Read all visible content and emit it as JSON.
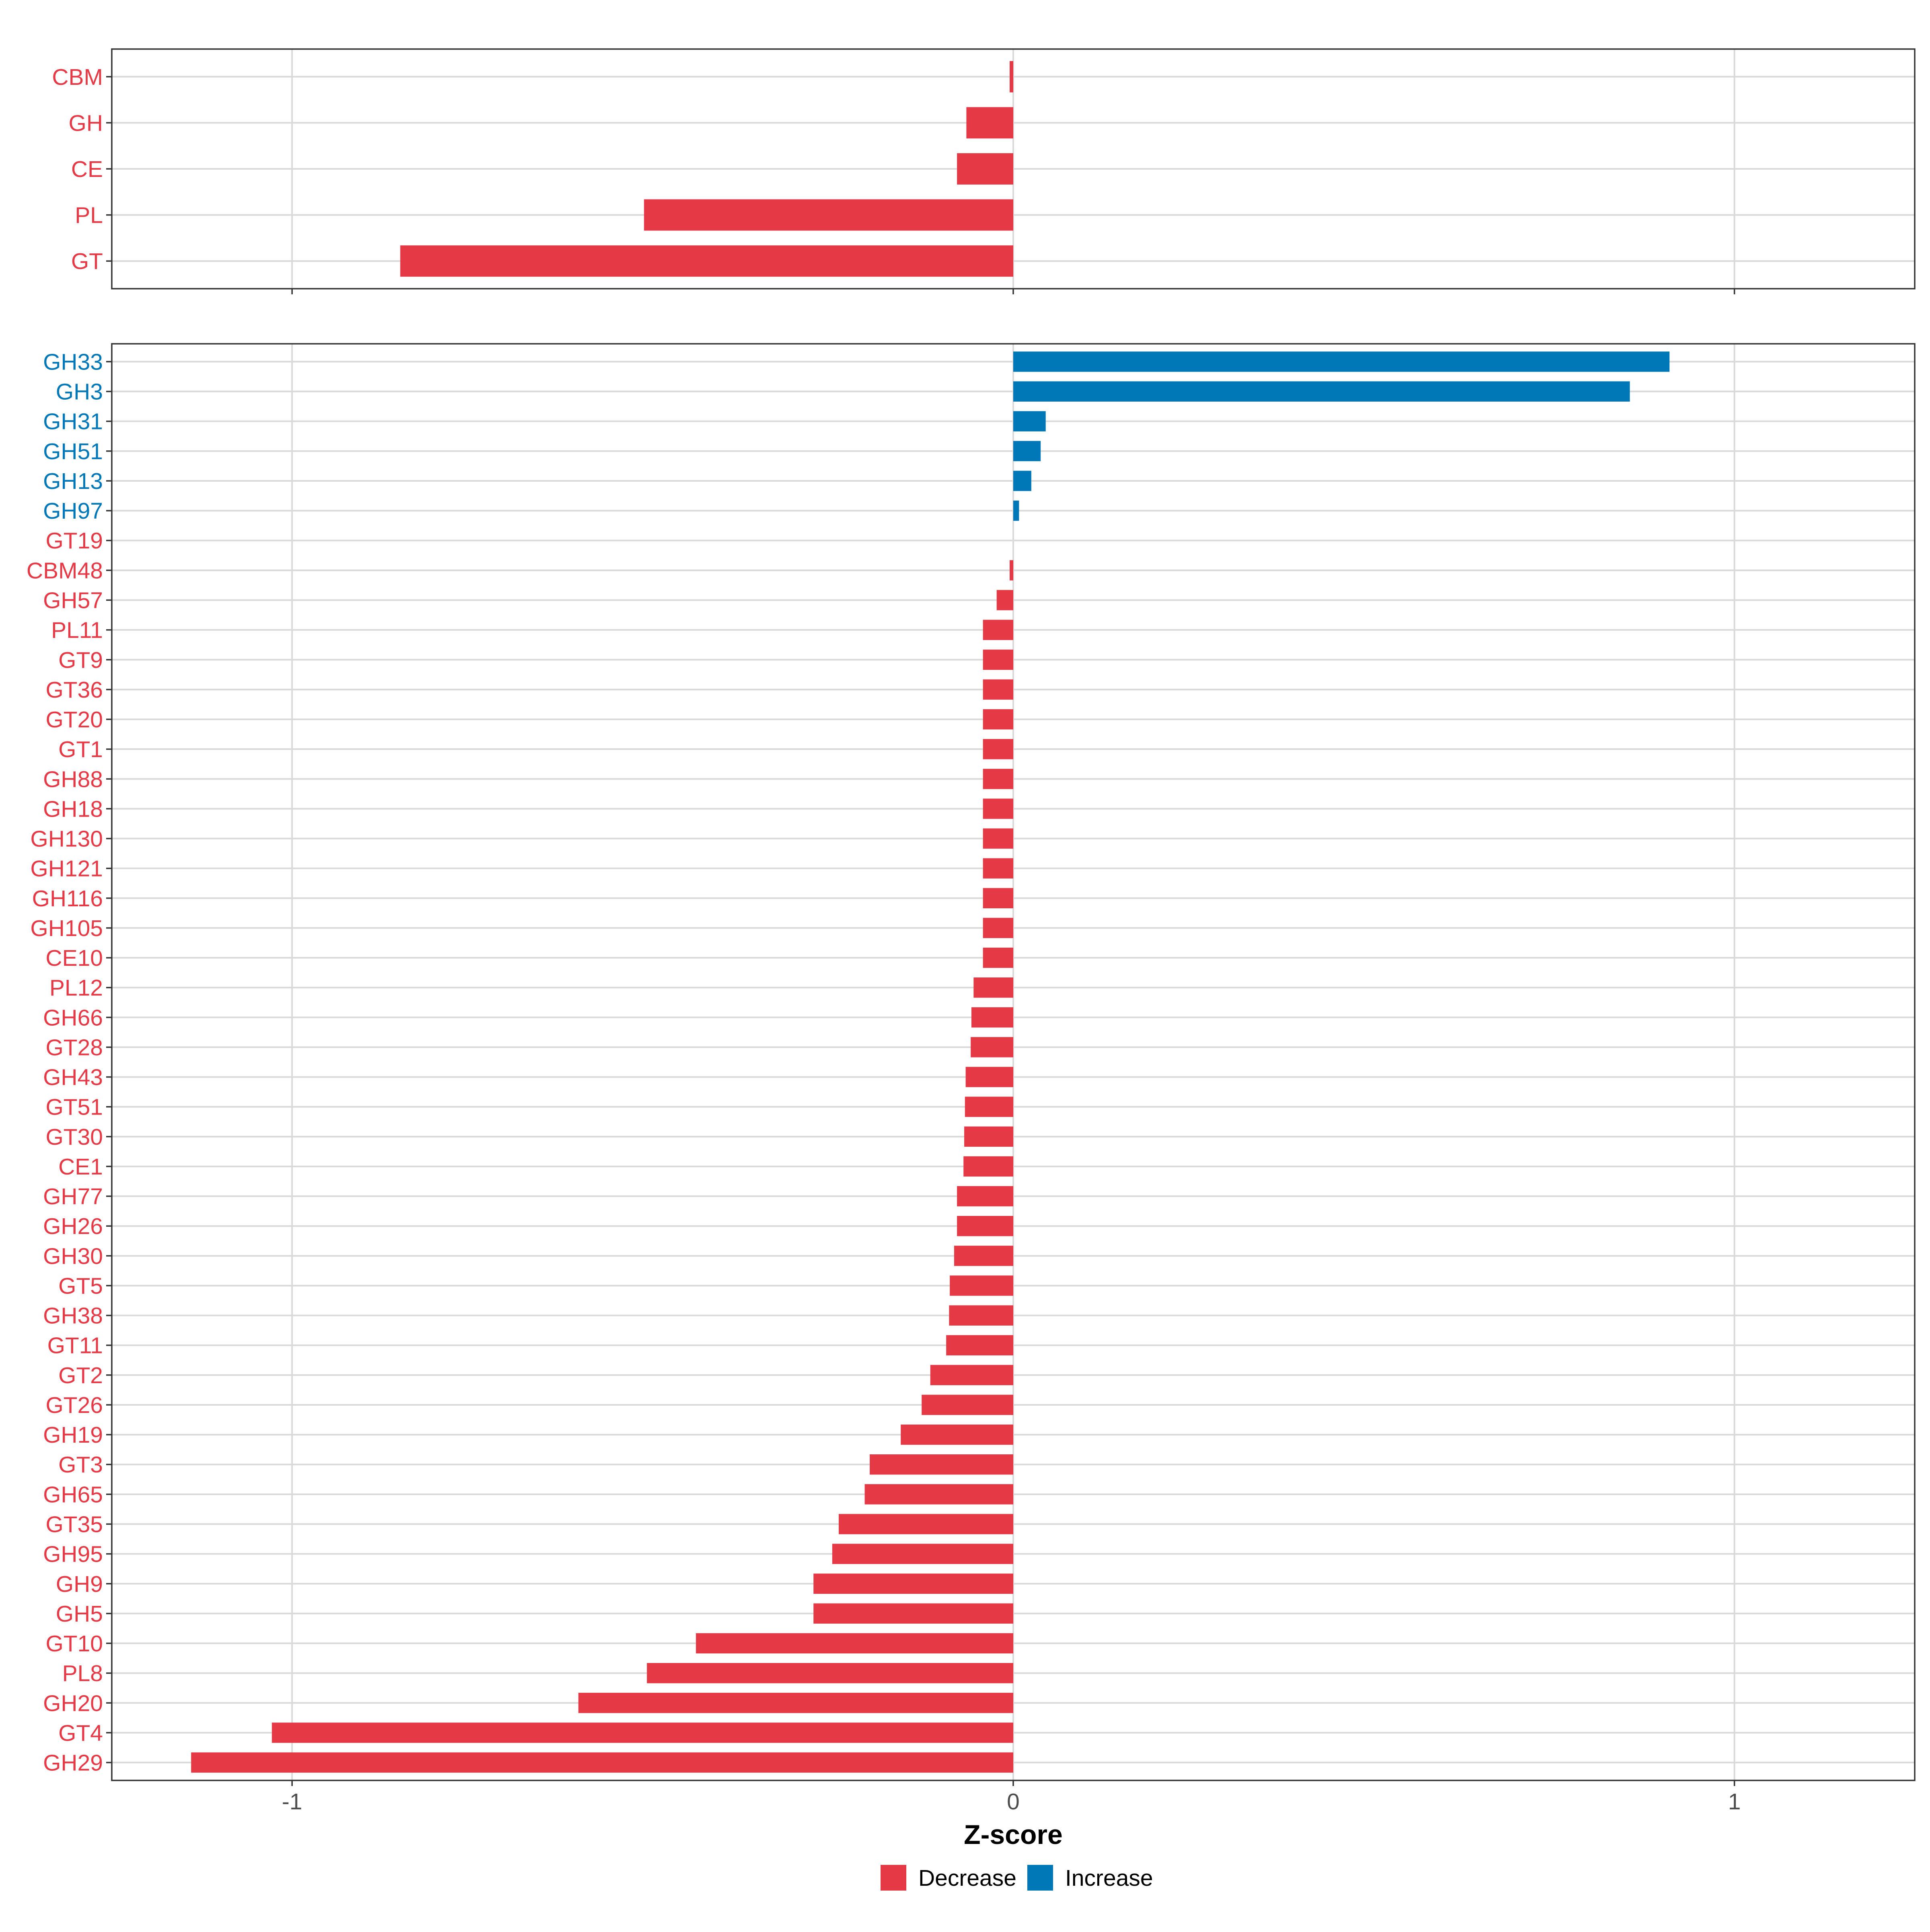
{
  "colors": {
    "decrease": "#E63946",
    "increase": "#0077B6",
    "grid": "#D9D9D9",
    "panel_border": "#333333",
    "axis_text": "#4D4D4D",
    "title_text": "#000000"
  },
  "chart_data": [
    {
      "type": "bar",
      "orientation": "horizontal",
      "panel": "top",
      "categories": [
        "CBM",
        "GH",
        "CE",
        "PL",
        "GT"
      ],
      "values": [
        -0.005,
        -0.065,
        -0.078,
        -0.512,
        -0.85
      ],
      "direction": [
        "Decrease",
        "Decrease",
        "Decrease",
        "Decrease",
        "Decrease"
      ],
      "xlim": [
        -1.25,
        1.25
      ],
      "xticks": [
        -1,
        0,
        1
      ],
      "show_x_tick_labels": false,
      "grid": true
    },
    {
      "type": "bar",
      "orientation": "horizontal",
      "panel": "bottom",
      "categories": [
        "GH33",
        "GH3",
        "GH31",
        "GH51",
        "GH13",
        "GH97",
        "GT19",
        "CBM48",
        "GH57",
        "PL11",
        "GT9",
        "GT36",
        "GT20",
        "GT1",
        "GH88",
        "GH18",
        "GH130",
        "GH121",
        "GH116",
        "GH105",
        "CE10",
        "PL12",
        "GH66",
        "GT28",
        "GH43",
        "GT51",
        "GT30",
        "CE1",
        "GH77",
        "GH26",
        "GH30",
        "GT5",
        "GH38",
        "GT11",
        "GT2",
        "GT26",
        "GH19",
        "GT3",
        "GH65",
        "GT35",
        "GH95",
        "GH9",
        "GH5",
        "GT10",
        "PL8",
        "GH20",
        "GT4",
        "GH29"
      ],
      "values": [
        0.91,
        0.855,
        0.045,
        0.038,
        0.025,
        0.008,
        0.0,
        -0.005,
        -0.023,
        -0.042,
        -0.042,
        -0.042,
        -0.042,
        -0.042,
        -0.042,
        -0.042,
        -0.042,
        -0.042,
        -0.042,
        -0.042,
        -0.042,
        -0.055,
        -0.058,
        -0.059,
        -0.066,
        -0.067,
        -0.068,
        -0.069,
        -0.078,
        -0.078,
        -0.082,
        -0.088,
        -0.089,
        -0.093,
        -0.115,
        -0.127,
        -0.156,
        -0.199,
        -0.206,
        -0.242,
        -0.251,
        -0.277,
        -0.277,
        -0.44,
        -0.508,
        -0.603,
        -1.028,
        -1.14
      ],
      "direction": [
        "Increase",
        "Increase",
        "Increase",
        "Increase",
        "Increase",
        "Increase",
        "Decrease",
        "Decrease",
        "Decrease",
        "Decrease",
        "Decrease",
        "Decrease",
        "Decrease",
        "Decrease",
        "Decrease",
        "Decrease",
        "Decrease",
        "Decrease",
        "Decrease",
        "Decrease",
        "Decrease",
        "Decrease",
        "Decrease",
        "Decrease",
        "Decrease",
        "Decrease",
        "Decrease",
        "Decrease",
        "Decrease",
        "Decrease",
        "Decrease",
        "Decrease",
        "Decrease",
        "Decrease",
        "Decrease",
        "Decrease",
        "Decrease",
        "Decrease",
        "Decrease",
        "Decrease",
        "Decrease",
        "Decrease",
        "Decrease",
        "Decrease",
        "Decrease",
        "Decrease",
        "Decrease",
        "Decrease"
      ],
      "xlim": [
        -1.25,
        1.25
      ],
      "xticks": [
        -1,
        0,
        1
      ],
      "x_tick_labels": [
        "-1",
        "0",
        "1"
      ],
      "xlabel": "Z-score",
      "grid": true
    }
  ],
  "legend": {
    "position": "bottom",
    "items": [
      {
        "label": "Decrease",
        "color_key": "decrease"
      },
      {
        "label": "Increase",
        "color_key": "increase"
      }
    ]
  }
}
